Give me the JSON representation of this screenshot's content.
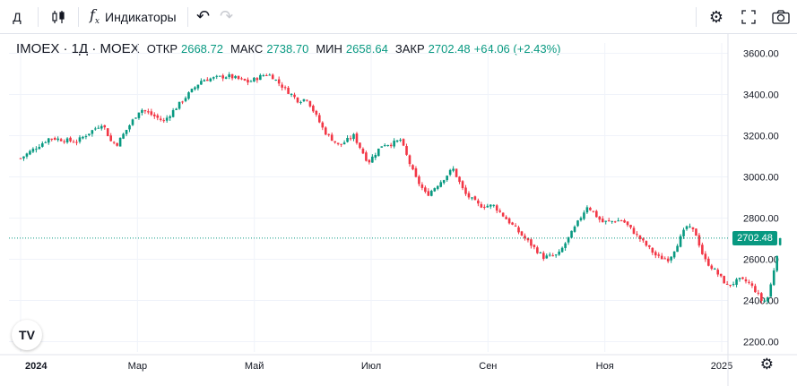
{
  "toolbar": {
    "interval": "Д",
    "chart_type_icon": "candles-icon",
    "indicators_label": "Индикаторы",
    "undo_icon": "undo-icon",
    "redo_icon": "redo-icon",
    "settings_icon": "gear-icon",
    "fullscreen_icon": "fullscreen-icon",
    "snapshot_icon": "camera-icon"
  },
  "legend": {
    "symbol": "IMOEX · 1Д · MOEX",
    "open_label": "ОТКР",
    "open": "2668.72",
    "high_label": "МАКС",
    "high": "2738.70",
    "low_label": "МИН",
    "low": "2658.64",
    "close_label": "ЗАКР",
    "close": "2702.48",
    "change": "+64.06 (+2.43%)"
  },
  "logo": "TV",
  "colors": {
    "up": "#089981",
    "down": "#f23645",
    "grid": "#f0f3fa",
    "text": "#131722"
  },
  "chart_data": {
    "type": "candlestick",
    "ylim": [
      2150,
      3650
    ],
    "y_ticks": [
      "3600.00",
      "3400.00",
      "3200.00",
      "3000.00",
      "2800.00",
      "2600.00",
      "2400.00",
      "2200.00"
    ],
    "y_tick_values": [
      3600,
      3400,
      3200,
      3000,
      2800,
      2600,
      2400,
      2200
    ],
    "x_ticks": [
      "2024",
      "Мар",
      "Май",
      "Июл",
      "Сен",
      "Ноя",
      "2025"
    ],
    "x_tick_months": [
      0,
      2,
      4,
      6,
      8,
      10,
      12
    ],
    "current_price": 2702.48,
    "current_price_label": "2702.48",
    "months": 12,
    "anchors": [
      [
        0.0,
        3090
      ],
      [
        0.5,
        3190
      ],
      [
        0.95,
        3170
      ],
      [
        1.4,
        3260
      ],
      [
        1.55,
        3170
      ],
      [
        1.65,
        3160
      ],
      [
        2.05,
        3330
      ],
      [
        2.45,
        3270
      ],
      [
        2.8,
        3380
      ],
      [
        3.1,
        3470
      ],
      [
        3.55,
        3490
      ],
      [
        3.9,
        3460
      ],
      [
        4.2,
        3500
      ],
      [
        4.3,
        3490
      ],
      [
        4.4,
        3460
      ],
      [
        4.75,
        3370
      ],
      [
        4.9,
        3380
      ],
      [
        5.2,
        3220
      ],
      [
        5.45,
        3150
      ],
      [
        5.7,
        3200
      ],
      [
        5.95,
        3070
      ],
      [
        6.2,
        3160
      ],
      [
        6.35,
        3160
      ],
      [
        6.5,
        3180
      ],
      [
        6.75,
        3000
      ],
      [
        6.95,
        2910
      ],
      [
        7.2,
        2980
      ],
      [
        7.4,
        3040
      ],
      [
        7.6,
        2920
      ],
      [
        7.85,
        2860
      ],
      [
        8.1,
        2860
      ],
      [
        8.4,
        2770
      ],
      [
        8.6,
        2710
      ],
      [
        8.95,
        2610
      ],
      [
        9.2,
        2620
      ],
      [
        9.5,
        2760
      ],
      [
        9.7,
        2860
      ],
      [
        9.95,
        2780
      ],
      [
        10.3,
        2790
      ],
      [
        10.5,
        2730
      ],
      [
        10.9,
        2610
      ],
      [
        11.1,
        2600
      ],
      [
        11.4,
        2760
      ],
      [
        11.55,
        2730
      ],
      [
        11.7,
        2600
      ],
      [
        11.9,
        2540
      ],
      [
        12.1,
        2470
      ],
      [
        12.3,
        2500
      ],
      [
        12.45,
        2490
      ],
      [
        12.6,
        2440
      ],
      [
        12.7,
        2390
      ],
      [
        12.8,
        2420
      ],
      [
        12.9,
        2560
      ],
      [
        13.0,
        2702.48
      ]
    ]
  }
}
